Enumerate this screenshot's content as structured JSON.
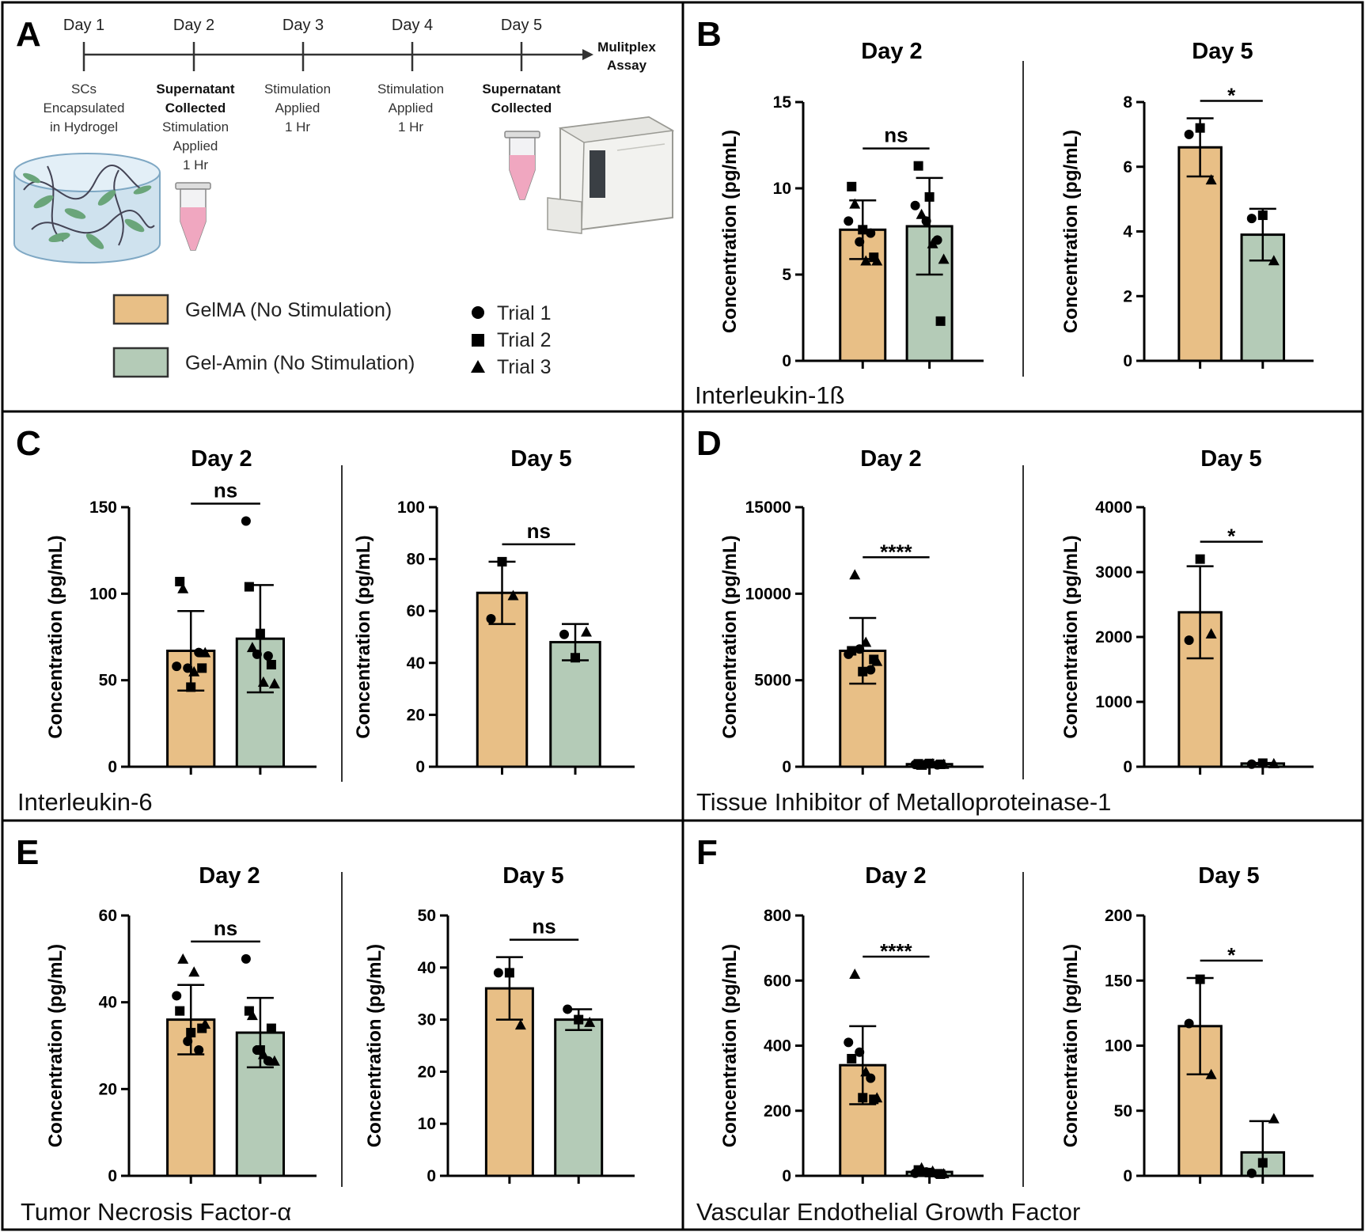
{
  "colors": {
    "gelma": "#e8bf86",
    "gelamin": "#b4cbb7",
    "border": "#000000"
  },
  "timeline": {
    "days": [
      "Day 1",
      "Day 2",
      "Day 3",
      "Day 4",
      "Day 5"
    ],
    "end_label": [
      "Mulitplex",
      "Assay"
    ],
    "steps": [
      {
        "normal": [
          "SCs",
          "Encapsulated",
          "in Hydrogel"
        ],
        "bold": []
      },
      {
        "bold": [
          "Supernatant",
          "Collected"
        ],
        "normal": [
          "Stimulation",
          "Applied",
          "1 Hr"
        ]
      },
      {
        "bold": [],
        "normal": [
          "Stimulation",
          "Applied",
          "1 Hr"
        ]
      },
      {
        "bold": [],
        "normal": [
          "Stimulation",
          "Applied",
          "1 Hr"
        ]
      },
      {
        "bold": [
          "Supernatant",
          "Collected"
        ],
        "normal": []
      }
    ]
  },
  "legend": {
    "groups": [
      "GelMA (No Stimulation)",
      "Gel-Amin (No Stimulation)"
    ],
    "trials": [
      "Trial 1",
      "Trial 2",
      "Trial 3"
    ]
  },
  "panel_letters": [
    "A",
    "B",
    "C",
    "D",
    "E",
    "F"
  ],
  "cytokines": {
    "B": "Interleukin-1ß",
    "C": "Interleukin-6",
    "D": "Tissue Inhibitor of Metalloproteinase-1",
    "E": "Tumor Necrosis Factor-α",
    "F": "Vascular Endothelial Growth Factor"
  },
  "chart_data": [
    {
      "type": "bar",
      "panel": "B",
      "title": "Day 2",
      "ylabel": "Concentration (pg/mL)",
      "ylim": [
        0,
        15
      ],
      "yticks": [
        0,
        5,
        10,
        15
      ],
      "sig": "ns",
      "categories": [
        "GelMA (No Stimulation)",
        "Gel-Amin (No Stimulation)"
      ],
      "values": [
        7.6,
        7.8
      ],
      "sd": [
        1.7,
        2.8
      ],
      "points": [
        [
          [
            8.1,
            "c"
          ],
          [
            6.9,
            "c"
          ],
          [
            7.4,
            "c"
          ],
          [
            10.1,
            "s"
          ],
          [
            7.6,
            "s"
          ],
          [
            6.0,
            "s"
          ],
          [
            9.1,
            "t"
          ],
          [
            5.8,
            "t"
          ],
          [
            5.8,
            "t"
          ]
        ],
        [
          [
            9.0,
            "c"
          ],
          [
            8.1,
            "c"
          ],
          [
            7.0,
            "c"
          ],
          [
            11.3,
            "s"
          ],
          [
            9.5,
            "s"
          ],
          [
            2.3,
            "s"
          ],
          [
            8.5,
            "t"
          ],
          [
            6.8,
            "t"
          ],
          [
            5.9,
            "t"
          ]
        ]
      ]
    },
    {
      "type": "bar",
      "panel": "B",
      "title": "Day 5",
      "ylabel": "Concentration (pg/mL)",
      "ylim": [
        0,
        8
      ],
      "yticks": [
        0,
        2,
        4,
        6,
        8
      ],
      "sig": "*",
      "categories": [
        "GelMA (No Stimulation)",
        "Gel-Amin (No Stimulation)"
      ],
      "values": [
        6.6,
        3.9
      ],
      "sd": [
        0.9,
        0.8
      ],
      "points": [
        [
          [
            7.0,
            "c"
          ],
          [
            7.2,
            "s"
          ],
          [
            5.6,
            "t"
          ]
        ],
        [
          [
            4.4,
            "c"
          ],
          [
            4.5,
            "s"
          ],
          [
            3.1,
            "t"
          ]
        ]
      ]
    },
    {
      "type": "bar",
      "panel": "C",
      "title": "Day 2",
      "ylabel": "Concentration (pg/mL)",
      "ylim": [
        0,
        150
      ],
      "yticks": [
        0,
        50,
        100,
        150
      ],
      "sig": "ns",
      "categories": [
        "GelMA (No Stimulation)",
        "Gel-Amin (No Stimulation)"
      ],
      "values": [
        67,
        74
      ],
      "sd": [
        23,
        31
      ],
      "points": [
        [
          [
            58,
            "c"
          ],
          [
            57,
            "c"
          ],
          [
            66,
            "c"
          ],
          [
            107,
            "s"
          ],
          [
            46,
            "s"
          ],
          [
            57,
            "s"
          ],
          [
            103,
            "t"
          ],
          [
            55,
            "t"
          ],
          [
            66,
            "t"
          ]
        ],
        [
          [
            142,
            "c"
          ],
          [
            65,
            "c"
          ],
          [
            64,
            "c"
          ],
          [
            104,
            "s"
          ],
          [
            77,
            "s"
          ],
          [
            59,
            "s"
          ],
          [
            69,
            "t"
          ],
          [
            49,
            "t"
          ],
          [
            48,
            "t"
          ]
        ]
      ]
    },
    {
      "type": "bar",
      "panel": "C",
      "title": "Day 5",
      "ylabel": "Concentration (pg/mL)",
      "ylim": [
        0,
        100
      ],
      "yticks": [
        0,
        20,
        40,
        60,
        80,
        100
      ],
      "sig": "ns",
      "categories": [
        "GelMA (No Stimulation)",
        "Gel-Amin (No Stimulation)"
      ],
      "values": [
        67,
        48
      ],
      "sd": [
        12,
        7
      ],
      "points": [
        [
          [
            57,
            "c"
          ],
          [
            79,
            "s"
          ],
          [
            66,
            "t"
          ]
        ],
        [
          [
            51,
            "c"
          ],
          [
            42,
            "s"
          ],
          [
            52,
            "t"
          ]
        ]
      ]
    },
    {
      "type": "bar",
      "panel": "D",
      "title": "Day 2",
      "ylabel": "Concentration (pg/mL)",
      "ylim": [
        0,
        15000
      ],
      "yticks": [
        0,
        5000,
        10000,
        15000
      ],
      "sig": "****",
      "categories": [
        "GelMA (No Stimulation)",
        "Gel-Amin (No Stimulation)"
      ],
      "values": [
        6700,
        150
      ],
      "sd": [
        1900,
        60
      ],
      "points": [
        [
          [
            6500,
            "c"
          ],
          [
            6800,
            "c"
          ],
          [
            5600,
            "c"
          ],
          [
            6700,
            "s"
          ],
          [
            5500,
            "s"
          ],
          [
            6200,
            "s"
          ],
          [
            11100,
            "t"
          ],
          [
            7200,
            "t"
          ],
          [
            6100,
            "t"
          ]
        ],
        [
          [
            130,
            "c"
          ],
          [
            160,
            "c"
          ],
          [
            110,
            "c"
          ],
          [
            170,
            "s"
          ],
          [
            190,
            "s"
          ],
          [
            140,
            "s"
          ],
          [
            100,
            "t"
          ],
          [
            180,
            "t"
          ],
          [
            150,
            "t"
          ]
        ]
      ]
    },
    {
      "type": "bar",
      "panel": "D",
      "title": "Day 5",
      "ylabel": "Concentration (pg/mL)",
      "ylim": [
        0,
        4000
      ],
      "yticks": [
        0,
        1000,
        2000,
        3000,
        4000
      ],
      "sig": "*",
      "categories": [
        "GelMA (No Stimulation)",
        "Gel-Amin (No Stimulation)"
      ],
      "values": [
        2380,
        50
      ],
      "sd": [
        710,
        10
      ],
      "points": [
        [
          [
            1950,
            "c"
          ],
          [
            3200,
            "s"
          ],
          [
            2050,
            "t"
          ]
        ],
        [
          [
            40,
            "c"
          ],
          [
            55,
            "s"
          ],
          [
            50,
            "t"
          ]
        ]
      ]
    },
    {
      "type": "bar",
      "panel": "E",
      "title": "Day 2",
      "ylabel": "Concentration (pg/mL)",
      "ylim": [
        0,
        60
      ],
      "yticks": [
        0,
        20,
        40,
        60
      ],
      "sig": "ns",
      "categories": [
        "GelMA (No Stimulation)",
        "Gel-Amin (No Stimulation)"
      ],
      "values": [
        36,
        33
      ],
      "sd": [
        8,
        8
      ],
      "points": [
        [
          [
            41.5,
            "c"
          ],
          [
            31,
            "c"
          ],
          [
            29,
            "c"
          ],
          [
            38,
            "s"
          ],
          [
            33,
            "s"
          ],
          [
            34,
            "s"
          ],
          [
            50,
            "t"
          ],
          [
            47,
            "t"
          ],
          [
            35,
            "t"
          ]
        ],
        [
          [
            50,
            "c"
          ],
          [
            29,
            "c"
          ],
          [
            26.5,
            "c"
          ],
          [
            38,
            "s"
          ],
          [
            29,
            "s"
          ],
          [
            34,
            "s"
          ],
          [
            37,
            "t"
          ],
          [
            28,
            "t"
          ],
          [
            26.5,
            "t"
          ]
        ]
      ]
    },
    {
      "type": "bar",
      "panel": "E",
      "title": "Day 5",
      "ylabel": "Concentration (pg/mL)",
      "ylim": [
        0,
        50
      ],
      "yticks": [
        0,
        10,
        20,
        30,
        40,
        50
      ],
      "sig": "ns",
      "categories": [
        "GelMA (No Stimulation)",
        "Gel-Amin (No Stimulation)"
      ],
      "values": [
        36,
        30
      ],
      "sd": [
        6,
        2
      ],
      "points": [
        [
          [
            39,
            "c"
          ],
          [
            39,
            "s"
          ],
          [
            29,
            "t"
          ]
        ],
        [
          [
            32,
            "c"
          ],
          [
            30,
            "s"
          ],
          [
            29.5,
            "t"
          ]
        ]
      ]
    },
    {
      "type": "bar",
      "panel": "F",
      "title": "Day 2",
      "ylabel": "Concentration (pg/mL)",
      "ylim": [
        0,
        800
      ],
      "yticks": [
        0,
        200,
        400,
        600,
        800
      ],
      "sig": "****",
      "categories": [
        "GelMA (No Stimulation)",
        "Gel-Amin (No Stimulation)"
      ],
      "values": [
        340,
        12
      ],
      "sd": [
        120,
        6
      ],
      "points": [
        [
          [
            410,
            "c"
          ],
          [
            380,
            "c"
          ],
          [
            300,
            "c"
          ],
          [
            360,
            "s"
          ],
          [
            240,
            "s"
          ],
          [
            235,
            "s"
          ],
          [
            620,
            "t"
          ],
          [
            320,
            "t"
          ],
          [
            240,
            "t"
          ]
        ],
        [
          [
            8,
            "c"
          ],
          [
            12,
            "c"
          ],
          [
            6,
            "c"
          ],
          [
            18,
            "s"
          ],
          [
            10,
            "s"
          ],
          [
            5,
            "s"
          ],
          [
            25,
            "t"
          ],
          [
            15,
            "t"
          ],
          [
            7,
            "t"
          ]
        ]
      ]
    },
    {
      "type": "bar",
      "panel": "F",
      "title": "Day 5",
      "ylabel": "Concentration (pg/mL)",
      "ylim": [
        0,
        200
      ],
      "yticks": [
        0,
        50,
        100,
        150,
        200
      ],
      "sig": "*",
      "categories": [
        "GelMA (No Stimulation)",
        "Gel-Amin (No Stimulation)"
      ],
      "values": [
        115,
        18
      ],
      "sd": [
        37,
        24
      ],
      "points": [
        [
          [
            117,
            "c"
          ],
          [
            151,
            "s"
          ],
          [
            78,
            "t"
          ]
        ],
        [
          [
            2,
            "c"
          ],
          [
            10,
            "s"
          ],
          [
            44,
            "t"
          ]
        ]
      ]
    }
  ]
}
